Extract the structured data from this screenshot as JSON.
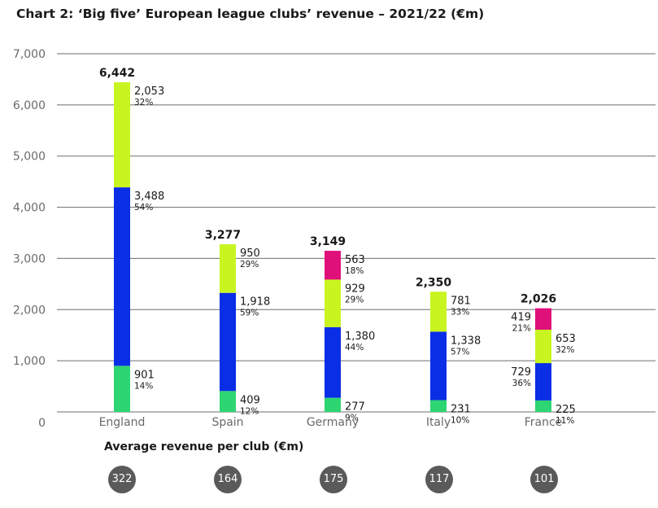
{
  "title": "Chart 2: ‘Big five’ European league clubs’ revenue – 2021/22 (€m)",
  "chart_data": {
    "type": "bar",
    "stacked": true,
    "categories": [
      "England",
      "Spain",
      "Germany",
      "Italy",
      "France"
    ],
    "totals": [
      6442,
      3277,
      3149,
      2350,
      2026
    ],
    "totals_labels": [
      "6,442",
      "3,277",
      "3,149",
      "2,350",
      "2,026"
    ],
    "series": [
      {
        "color": "#2ed573",
        "values": [
          901,
          409,
          277,
          231,
          225
        ],
        "labels": [
          "901",
          "409",
          "277",
          "231",
          "225"
        ],
        "pct": [
          "14%",
          "12%",
          "9%",
          "10%",
          "11%"
        ]
      },
      {
        "color": "#0a2ee6",
        "values": [
          3488,
          1918,
          1380,
          1338,
          729
        ],
        "labels": [
          "3,488",
          "1,918",
          "1,380",
          "1,338",
          "729"
        ],
        "pct": [
          "54%",
          "59%",
          "44%",
          "57%",
          "36%"
        ]
      },
      {
        "color": "#c8f520",
        "values": [
          2053,
          950,
          929,
          781,
          653
        ],
        "labels": [
          "2,053",
          "950",
          "929",
          "781",
          "653"
        ],
        "pct": [
          "32%",
          "29%",
          "29%",
          "33%",
          "32%"
        ]
      },
      {
        "color": "#e0107a",
        "values": [
          null,
          null,
          563,
          null,
          419
        ],
        "labels": [
          "",
          "",
          "563",
          "",
          "419"
        ],
        "pct": [
          "",
          "",
          "18%",
          "",
          "21%"
        ]
      }
    ],
    "ylim": [
      0,
      7000
    ],
    "yticks": [
      0,
      1000,
      2000,
      3000,
      4000,
      5000,
      6000,
      7000
    ],
    "ytick_labels": [
      "0",
      "1,000",
      "2,000",
      "3,000",
      "4,000",
      "5,000",
      "6,000",
      "7,000"
    ],
    "grid": true
  },
  "average_revenue": {
    "title": "Average revenue per club (€m)",
    "values": [
      "322",
      "164",
      "175",
      "117",
      "101"
    ]
  }
}
